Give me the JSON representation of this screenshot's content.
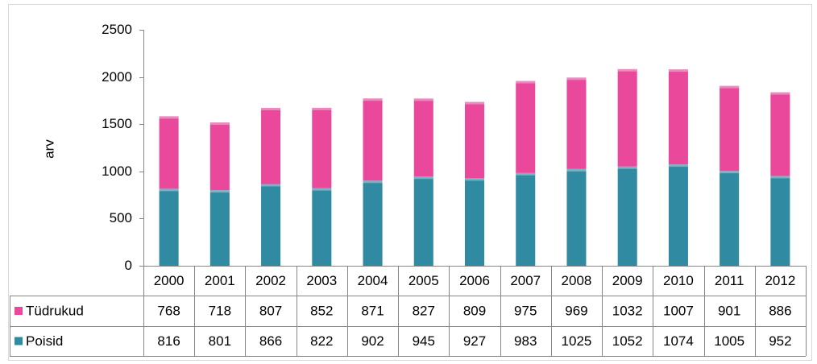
{
  "chart_data": {
    "type": "bar",
    "stacked": true,
    "y_label": "arv",
    "categories": [
      "2000",
      "2001",
      "2002",
      "2003",
      "2004",
      "2005",
      "2006",
      "2007",
      "2008",
      "2009",
      "2010",
      "2011",
      "2012"
    ],
    "series": [
      {
        "name": "Tüdrukud",
        "color": "#e9489b",
        "values": [
          768,
          718,
          807,
          852,
          871,
          827,
          809,
          975,
          969,
          1032,
          1007,
          901,
          886
        ]
      },
      {
        "name": "Poisid",
        "color": "#2f8aa2",
        "values": [
          816,
          801,
          866,
          822,
          902,
          945,
          927,
          983,
          1025,
          1052,
          1074,
          1005,
          952
        ]
      }
    ],
    "ylim": [
      0,
      2500
    ],
    "yticks": [
      0,
      500,
      1000,
      1500,
      2000,
      2500
    ],
    "grid": false,
    "data_table": true
  }
}
